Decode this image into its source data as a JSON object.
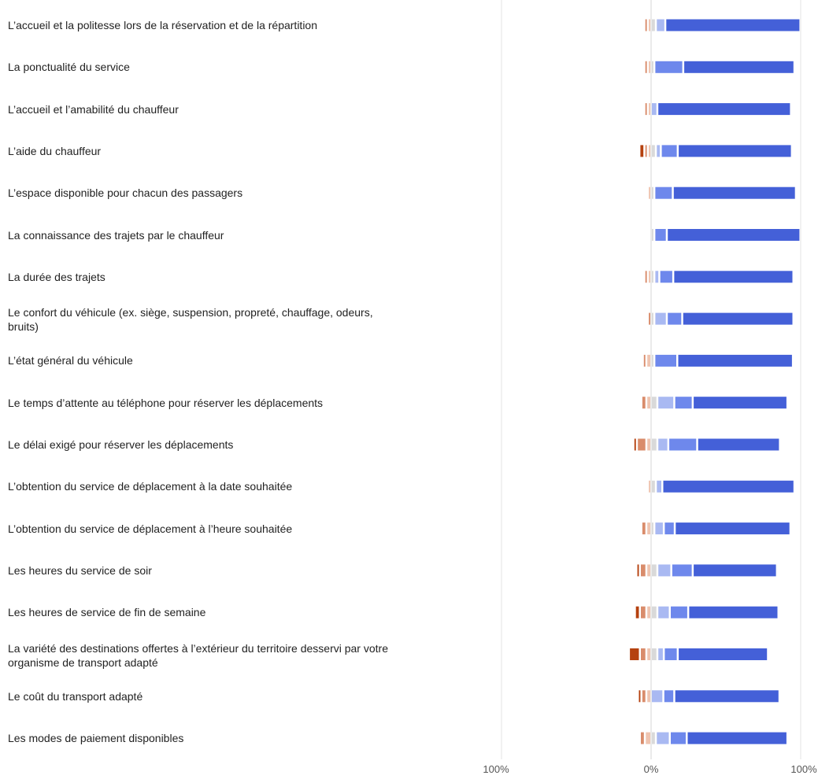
{
  "chart_data": {
    "type": "bar",
    "subtype": "diverging-stacked-horizontal",
    "x_range": [
      -100,
      100
    ],
    "x_tick_labels": [
      "100%",
      "0%",
      "100%"
    ],
    "grid": true,
    "legend": "none",
    "colors": {
      "neg_strong": "#b5410f",
      "neg_mid": "#d98c6b",
      "neg_light": "#efc4b0",
      "neutral": "#d9d9d9",
      "pos_light": "#a9b9f2",
      "pos_mid": "#6e88ec",
      "pos_strong": "#4460d8"
    },
    "categories": [
      "L’accueil et la politesse lors de la réservation et de la répartition",
      "La ponctualité du service",
      "L’accueil et l’amabilité du chauffeur",
      "L’aide du chauffeur",
      "L’espace disponible pour chacun des passagers",
      "La connaissance des trajets par le chauffeur",
      "La durée des trajets",
      "Le confort du véhicule (ex. siège, suspension, propreté, chauffage, odeurs, bruits)",
      "L’état général du véhicule",
      "Le temps d’attente au téléphone pour réserver les déplacements",
      "Le délai exigé pour réserver les déplacements",
      "L’obtention du service de déplacement à la date souhaitée",
      "L’obtention du service de déplacement à l’heure souhaitée",
      "Les heures du service de soir",
      "Les heures de service de fin de semaine",
      "La variété des destinations offertes à l’extérieur du territoire desservi par votre organisme de transport adapté",
      "Le coût du transport adapté",
      "Les modes de paiement disponibles"
    ],
    "series": [
      {
        "values": [
          0,
          0,
          0,
          2,
          0,
          0,
          0,
          0,
          0,
          0,
          1,
          0,
          0,
          1,
          2,
          6,
          1,
          0
        ]
      },
      {
        "values": [
          1,
          1,
          1,
          1,
          0,
          0,
          1,
          1,
          1,
          2,
          5,
          0,
          2,
          3,
          3,
          3,
          2,
          2
        ]
      },
      {
        "values": [
          1,
          1,
          1,
          1,
          1,
          0,
          1,
          0,
          2,
          2,
          2,
          1,
          2,
          2,
          2,
          2,
          2,
          3
        ]
      },
      {
        "values": [
          2,
          1,
          0,
          2,
          1,
          1,
          1,
          1,
          1,
          3,
          3,
          2,
          1,
          3,
          3,
          3,
          0,
          2
        ]
      },
      {
        "values": [
          5,
          0,
          3,
          2,
          0,
          0,
          2,
          7,
          0,
          10,
          6,
          3,
          5,
          8,
          7,
          3,
          7,
          8
        ]
      },
      {
        "values": [
          0,
          18,
          0,
          10,
          11,
          7,
          8,
          9,
          14,
          11,
          18,
          0,
          6,
          13,
          11,
          8,
          6,
          10
        ]
      },
      {
        "values": [
          89,
          73,
          88,
          75,
          81,
          88,
          79,
          73,
          76,
          62,
          54,
          87,
          76,
          55,
          59,
          59,
          69,
          66
        ]
      }
    ]
  }
}
